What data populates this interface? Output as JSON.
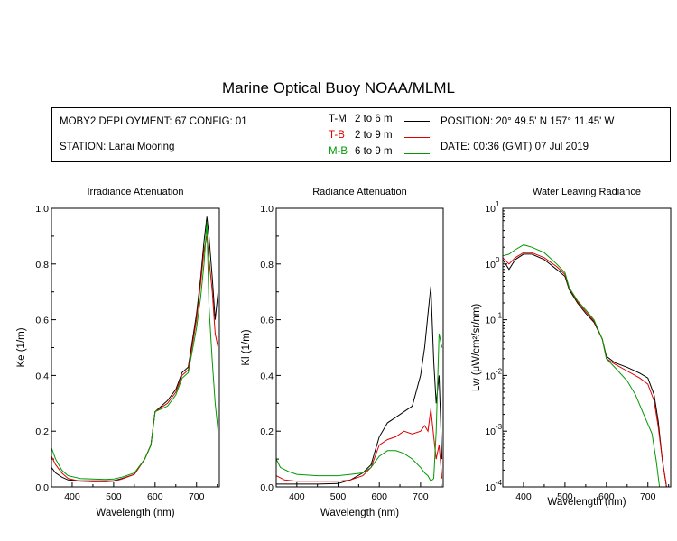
{
  "title": "Marine Optical Buoy NOAA/MLML",
  "info": {
    "deployment": "MOBY2 DEPLOYMENT: 67 CONFIG: 01",
    "station": "STATION: Lanai Mooring",
    "position": "POSITION: 20° 49.5' N  157° 11.45' W",
    "date": "DATE: 00:36 (GMT) 07 Jul 2019"
  },
  "legend": [
    {
      "code": "T-M",
      "range": "2 to 6  m",
      "color": "#000000"
    },
    {
      "code": "T-B",
      "range": "2 to 9  m",
      "color": "#dd0000"
    },
    {
      "code": "M-B",
      "range": "6 to 9  m",
      "color": "#009900"
    }
  ],
  "chart_data": [
    {
      "type": "line",
      "title": "Irradiance Attenuation",
      "xlabel": "Wavelength (nm)",
      "ylabel": "Ke  (1/m)",
      "xlim": [
        350,
        755
      ],
      "ylim": [
        0,
        1.0
      ],
      "xticks": [
        400,
        500,
        600,
        700
      ],
      "yticks": [
        "0.0",
        "0.2",
        "0.4",
        "0.6",
        "0.8",
        "1.0"
      ],
      "series": [
        {
          "name": "T-M",
          "color": "#000000",
          "x": [
            350,
            360,
            375,
            390,
            420,
            450,
            480,
            500,
            520,
            550,
            575,
            590,
            600,
            615,
            630,
            650,
            665,
            680,
            700,
            710,
            718,
            725,
            730,
            738,
            745,
            752
          ],
          "y": [
            0.07,
            0.05,
            0.035,
            0.025,
            0.022,
            0.022,
            0.022,
            0.022,
            0.03,
            0.045,
            0.1,
            0.15,
            0.27,
            0.29,
            0.31,
            0.35,
            0.41,
            0.43,
            0.62,
            0.75,
            0.88,
            0.97,
            0.9,
            0.75,
            0.6,
            0.7
          ]
        },
        {
          "name": "T-B",
          "color": "#dd0000",
          "x": [
            350,
            360,
            375,
            390,
            420,
            450,
            480,
            500,
            520,
            550,
            575,
            590,
            600,
            615,
            630,
            650,
            665,
            680,
            700,
            710,
            718,
            725,
            730,
            738,
            745,
            752
          ],
          "y": [
            0.11,
            0.08,
            0.05,
            0.03,
            0.02,
            0.018,
            0.018,
            0.02,
            0.028,
            0.045,
            0.1,
            0.15,
            0.27,
            0.285,
            0.3,
            0.34,
            0.4,
            0.42,
            0.6,
            0.73,
            0.85,
            0.9,
            0.82,
            0.7,
            0.55,
            0.5
          ]
        },
        {
          "name": "M-B",
          "color": "#009900",
          "x": [
            350,
            360,
            375,
            390,
            420,
            450,
            480,
            500,
            520,
            550,
            575,
            590,
            600,
            615,
            630,
            650,
            665,
            680,
            700,
            710,
            718,
            725,
            730,
            738,
            745,
            752
          ],
          "y": [
            0.14,
            0.1,
            0.06,
            0.04,
            0.03,
            0.028,
            0.027,
            0.028,
            0.035,
            0.05,
            0.1,
            0.15,
            0.27,
            0.28,
            0.29,
            0.33,
            0.39,
            0.41,
            0.57,
            0.68,
            0.8,
            0.95,
            0.65,
            0.45,
            0.3,
            0.2
          ]
        }
      ]
    },
    {
      "type": "line",
      "title": "Radiance Attenuation",
      "xlabel": "Wavelength (nm)",
      "ylabel": "Kl  (1/m)",
      "xlim": [
        350,
        755
      ],
      "ylim": [
        0,
        1.0
      ],
      "xticks": [
        400,
        500,
        600,
        700
      ],
      "yticks": [
        "0.0",
        "0.2",
        "0.4",
        "0.6",
        "0.8",
        "1.0"
      ],
      "series": [
        {
          "name": "T-M",
          "color": "#000000",
          "x": [
            350,
            370,
            400,
            450,
            500,
            530,
            560,
            580,
            590,
            600,
            620,
            640,
            660,
            680,
            700,
            710,
            718,
            725,
            732,
            738,
            745,
            752
          ],
          "y": [
            0.01,
            0.01,
            0.01,
            0.01,
            0.012,
            0.025,
            0.05,
            0.08,
            0.13,
            0.18,
            0.23,
            0.25,
            0.27,
            0.29,
            0.4,
            0.5,
            0.62,
            0.72,
            0.45,
            0.3,
            0.4,
            0.1
          ]
        },
        {
          "name": "T-B",
          "color": "#dd0000",
          "x": [
            350,
            370,
            400,
            450,
            500,
            530,
            560,
            580,
            590,
            600,
            620,
            640,
            660,
            680,
            700,
            710,
            718,
            725,
            732,
            738,
            745,
            752
          ],
          "y": [
            0.04,
            0.025,
            0.02,
            0.02,
            0.02,
            0.025,
            0.04,
            0.07,
            0.11,
            0.15,
            0.17,
            0.18,
            0.2,
            0.19,
            0.2,
            0.22,
            0.2,
            0.28,
            0.18,
            0.1,
            0.15,
            0.03
          ]
        },
        {
          "name": "M-B",
          "color": "#009900",
          "x": [
            350,
            360,
            380,
            400,
            450,
            500,
            530,
            560,
            580,
            590,
            600,
            620,
            640,
            660,
            680,
            700,
            710,
            718,
            725,
            732,
            738,
            745,
            752
          ],
          "y": [
            0.1,
            0.07,
            0.055,
            0.045,
            0.04,
            0.04,
            0.045,
            0.05,
            0.07,
            0.09,
            0.11,
            0.13,
            0.13,
            0.12,
            0.1,
            0.07,
            0.05,
            0.04,
            0.02,
            0.03,
            0.2,
            0.55,
            0.5
          ]
        }
      ]
    },
    {
      "type": "line",
      "title": "Water Leaving Radiance",
      "xlabel": "Wavelength (nm)",
      "ylabel": "Lw  (μW/cm²/sr/nm)",
      "yscale": "log",
      "xlim": [
        350,
        755
      ],
      "ylim": [
        0.0001,
        10
      ],
      "xticks": [
        400,
        500,
        600,
        700
      ],
      "yticks": [
        {
          "base": "10",
          "exp": "1"
        },
        {
          "base": "10",
          "exp": "0"
        },
        {
          "base": "10",
          "exp": "-1"
        },
        {
          "base": "10",
          "exp": "-2"
        },
        {
          "base": "10",
          "exp": "-3"
        },
        {
          "base": "10",
          "exp": "-4"
        }
      ],
      "series": [
        {
          "name": "T-M",
          "color": "#000000",
          "x": [
            350,
            365,
            380,
            400,
            420,
            450,
            480,
            500,
            510,
            530,
            550,
            570,
            590,
            600,
            620,
            650,
            680,
            700,
            715,
            725,
            735,
            745
          ],
          "y": [
            1.2,
            0.8,
            1.2,
            1.5,
            1.5,
            1.2,
            0.8,
            0.6,
            0.35,
            0.2,
            0.13,
            0.09,
            0.045,
            0.022,
            0.017,
            0.014,
            0.011,
            0.009,
            0.0045,
            0.0015,
            0.0003,
            0.0001
          ]
        },
        {
          "name": "T-B",
          "color": "#dd0000",
          "x": [
            350,
            365,
            380,
            400,
            420,
            450,
            480,
            500,
            510,
            530,
            550,
            570,
            590,
            600,
            620,
            650,
            680,
            700,
            715,
            725,
            735,
            745
          ],
          "y": [
            1.3,
            1.0,
            1.3,
            1.6,
            1.6,
            1.3,
            0.9,
            0.65,
            0.37,
            0.21,
            0.14,
            0.095,
            0.045,
            0.02,
            0.016,
            0.012,
            0.009,
            0.007,
            0.0035,
            0.0012,
            0.0003,
            0.0001
          ]
        },
        {
          "name": "M-B",
          "color": "#009900",
          "x": [
            350,
            365,
            380,
            400,
            420,
            450,
            480,
            500,
            510,
            530,
            550,
            570,
            590,
            600,
            620,
            650,
            670,
            690,
            710,
            720,
            728
          ],
          "y": [
            1.4,
            1.5,
            1.8,
            2.2,
            2.0,
            1.6,
            1.0,
            0.7,
            0.38,
            0.22,
            0.15,
            0.1,
            0.045,
            0.02,
            0.014,
            0.008,
            0.0045,
            0.002,
            0.0009,
            0.0003,
            0.0001
          ]
        }
      ]
    }
  ]
}
